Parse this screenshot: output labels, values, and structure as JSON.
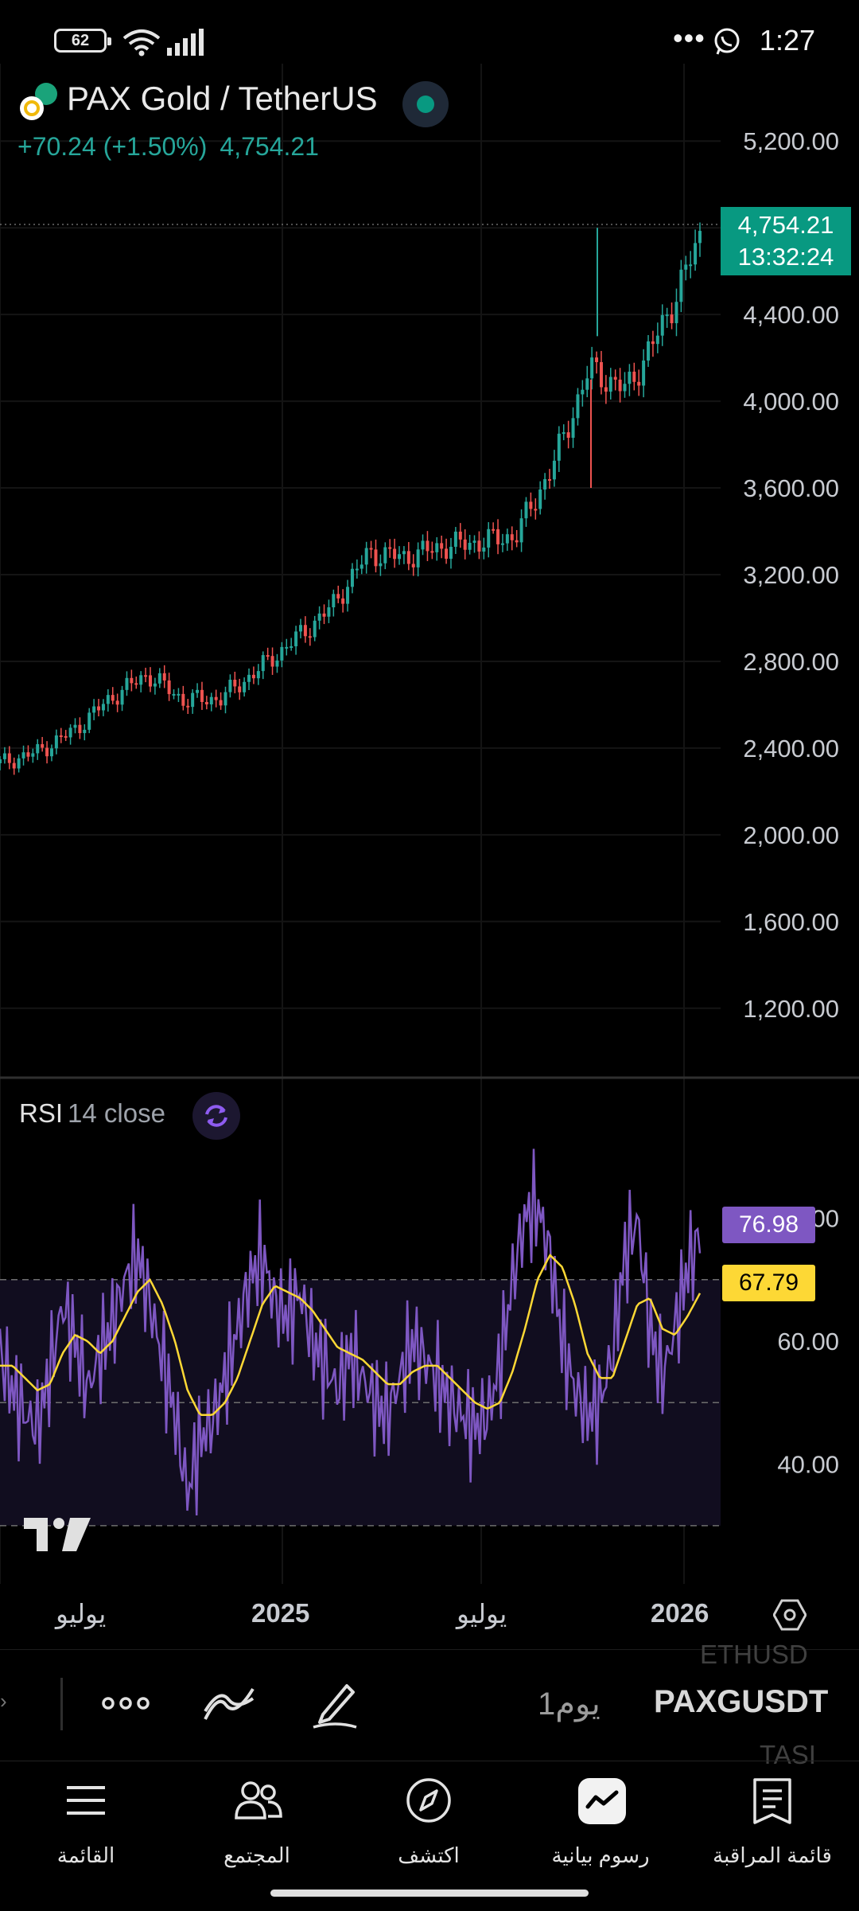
{
  "status_bar": {
    "battery": "62",
    "time": "1:27"
  },
  "header": {
    "symbol_name": "PAX Gold / TetherUS",
    "change": "+70.24 (+1.50%)",
    "last_price": "4,754.21"
  },
  "price_axis": {
    "ticks": [
      "5,200.00",
      "4,400.00",
      "4,000.00",
      "3,600.00",
      "3,200.00",
      "2,800.00",
      "2,400.00",
      "2,000.00",
      "1,600.00",
      "1,200.00"
    ],
    "current_price_label": "4,754.21",
    "countdown": "13:32:24"
  },
  "rsi": {
    "name": "RSI",
    "params": "14 close",
    "axis_ticks": [
      "80.00",
      "60.00",
      "40.00"
    ],
    "rsi_value": "76.98",
    "ma_value": "67.79",
    "colors": {
      "rsi_line": "#7e57c2",
      "ma_line": "#fdd835"
    }
  },
  "time_axis": [
    "يوليو",
    "2025",
    "يوليو",
    "2026"
  ],
  "toolbar": {
    "symbol_prev": "ETHUSD",
    "symbol": "PAXGUSDT",
    "symbol_next": "TASI",
    "interval": "1يوم",
    "icons": [
      "more-icon",
      "indicators-icon",
      "drawing-pen-icon"
    ]
  },
  "nav": {
    "menu": "القائمة",
    "community": "المجتمع",
    "explore": "اكتشف",
    "charts": "رسوم بيانية",
    "watchlist": "قائمة المراقبة"
  },
  "chart_data": [
    {
      "type": "line",
      "title": "PAX Gold / TetherUS",
      "series": [
        {
          "name": "PAXGUSDT",
          "x": [
            "2024-06",
            "2024-07",
            "2024-08",
            "2024-09",
            "2024-10",
            "2024-11",
            "2024-12",
            "2025-01",
            "2025-02",
            "2025-03",
            "2025-04",
            "2025-05",
            "2025-06",
            "2025-07",
            "2025-08",
            "2025-09",
            "2025-10",
            "2025-11",
            "2025-12",
            "2026-01"
          ],
          "values": [
            2330,
            2380,
            2480,
            2630,
            2740,
            2620,
            2630,
            2760,
            2900,
            3050,
            3300,
            3280,
            3330,
            3350,
            3380,
            3700,
            4150,
            4050,
            4350,
            4754.21
          ]
        }
      ],
      "ylim": [
        1100,
        5300
      ],
      "colors": {
        "up": "#26a69a",
        "down": "#ef5350"
      }
    },
    {
      "type": "line",
      "title": "RSI 14 close",
      "series": [
        {
          "name": "RSI",
          "values": [
            58,
            52,
            48,
            46,
            55,
            66,
            60,
            52,
            58,
            63,
            70,
            74,
            66,
            57,
            48,
            35,
            44,
            47,
            54,
            62,
            70,
            74,
            66,
            64,
            68,
            60,
            56,
            52,
            58,
            54,
            50,
            48,
            54,
            60,
            57,
            54,
            50,
            48,
            46,
            48,
            56,
            70,
            80,
            82,
            74,
            60,
            52,
            48,
            50,
            58,
            74,
            80,
            62,
            54,
            62,
            72,
            76.98
          ]
        },
        {
          "name": "MA",
          "values": [
            56,
            56,
            54,
            52,
            53,
            58,
            61,
            60,
            58,
            60,
            64,
            68,
            70,
            66,
            60,
            52,
            48,
            48,
            50,
            54,
            60,
            66,
            69,
            68,
            67,
            65,
            62,
            59,
            58,
            57,
            55,
            53,
            53,
            55,
            56,
            56,
            54,
            52,
            50,
            49,
            50,
            55,
            62,
            70,
            74,
            72,
            66,
            58,
            54,
            54,
            60,
            66,
            67,
            62,
            61,
            64,
            67.79
          ]
        }
      ],
      "ylim": [
        27,
        93
      ],
      "bands": [
        70,
        50,
        30
      ]
    }
  ]
}
